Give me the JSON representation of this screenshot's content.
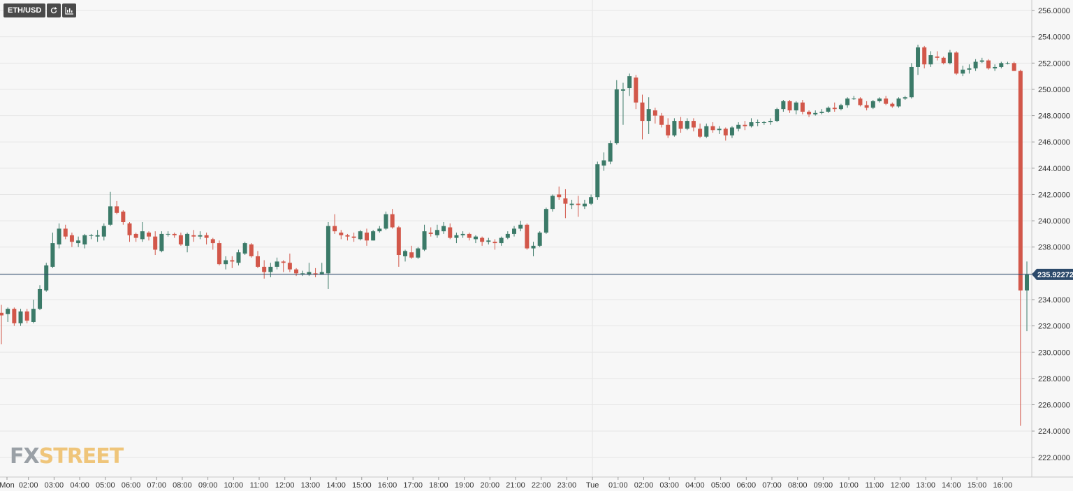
{
  "toolbar": {
    "symbol": "ETH/USD",
    "refresh_icon": "refresh-icon",
    "settings_icon": "chart-settings-icon"
  },
  "logo": {
    "fx": "FX",
    "street": "STREET"
  },
  "colors": {
    "up": "#3b7a68",
    "down": "#d2574a",
    "grid": "#e6e6e6",
    "axis_text": "#333333",
    "price_line": "#2c4a6b",
    "price_label_bg": "#2c4a6b"
  },
  "chart_data": {
    "type": "candlestick",
    "symbol": "ETH/USD",
    "interval": "15m",
    "current_price": "235.92272",
    "ylim": [
      220.5,
      256.8
    ],
    "y_ticks": [
      "256.0000",
      "254.0000",
      "252.0000",
      "250.0000",
      "248.0000",
      "246.0000",
      "244.0000",
      "242.0000",
      "240.0000",
      "238.0000",
      "236.0000",
      "234.0000",
      "232.0000",
      "230.0000",
      "228.0000",
      "226.0000",
      "224.0000",
      "222.0000"
    ],
    "x_ticks": [
      {
        "label": "Mon",
        "hour": 1
      },
      {
        "label": "02:00",
        "hour": 2
      },
      {
        "label": "03:00",
        "hour": 3
      },
      {
        "label": "04:00",
        "hour": 4
      },
      {
        "label": "05:00",
        "hour": 5
      },
      {
        "label": "06:00",
        "hour": 6
      },
      {
        "label": "07:00",
        "hour": 7
      },
      {
        "label": "08:00",
        "hour": 8
      },
      {
        "label": "09:00",
        "hour": 9
      },
      {
        "label": "10:00",
        "hour": 10
      },
      {
        "label": "11:00",
        "hour": 11
      },
      {
        "label": "12:00",
        "hour": 12
      },
      {
        "label": "13:00",
        "hour": 13
      },
      {
        "label": "14:00",
        "hour": 14
      },
      {
        "label": "15:00",
        "hour": 15
      },
      {
        "label": "16:00",
        "hour": 16
      },
      {
        "label": "17:00",
        "hour": 17
      },
      {
        "label": "18:00",
        "hour": 18
      },
      {
        "label": "19:00",
        "hour": 19
      },
      {
        "label": "20:00",
        "hour": 20
      },
      {
        "label": "21:00",
        "hour": 21
      },
      {
        "label": "22:00",
        "hour": 22
      },
      {
        "label": "23:00",
        "hour": 23
      },
      {
        "label": "Tue",
        "hour": 24
      },
      {
        "label": "01:00",
        "hour": 25
      },
      {
        "label": "02:00",
        "hour": 26
      },
      {
        "label": "03:00",
        "hour": 27
      },
      {
        "label": "04:00",
        "hour": 28
      },
      {
        "label": "05:00",
        "hour": 29
      },
      {
        "label": "06:00",
        "hour": 30
      },
      {
        "label": "07:00",
        "hour": 31
      },
      {
        "label": "08:00",
        "hour": 32
      },
      {
        "label": "09:00",
        "hour": 33
      },
      {
        "label": "10:00",
        "hour": 34
      },
      {
        "label": "11:00",
        "hour": 35
      },
      {
        "label": "12:00",
        "hour": 36
      },
      {
        "label": "13:00",
        "hour": 37
      },
      {
        "label": "14:00",
        "hour": 38
      },
      {
        "label": "15:00",
        "hour": 39
      },
      {
        "label": "16:00",
        "hour": 40
      }
    ],
    "candles": [
      [
        233.0,
        233.6,
        230.6,
        232.8
      ],
      [
        232.9,
        233.4,
        232.3,
        233.3
      ],
      [
        233.3,
        233.4,
        232.0,
        232.2
      ],
      [
        232.2,
        233.3,
        232.0,
        233.1
      ],
      [
        233.1,
        233.3,
        232.2,
        232.4
      ],
      [
        232.3,
        234.0,
        232.2,
        233.3
      ],
      [
        233.3,
        235.1,
        233.2,
        234.8
      ],
      [
        234.7,
        236.8,
        234.6,
        236.6
      ],
      [
        236.5,
        239.1,
        236.4,
        238.3
      ],
      [
        238.2,
        239.8,
        237.9,
        239.4
      ],
      [
        239.4,
        239.7,
        238.6,
        238.8
      ],
      [
        238.9,
        239.1,
        238.0,
        238.4
      ],
      [
        238.3,
        238.8,
        238.0,
        238.5
      ],
      [
        238.2,
        239.0,
        237.9,
        238.9
      ],
      [
        238.9,
        239.0,
        238.6,
        238.9
      ],
      [
        238.8,
        239.3,
        238.4,
        238.9
      ],
      [
        238.8,
        239.8,
        238.5,
        239.6
      ],
      [
        239.7,
        242.2,
        239.6,
        241.1
      ],
      [
        241.1,
        241.5,
        240.5,
        240.6
      ],
      [
        240.7,
        240.8,
        239.7,
        239.9
      ],
      [
        239.8,
        239.9,
        238.4,
        238.9
      ],
      [
        239.0,
        239.1,
        238.4,
        238.7
      ],
      [
        238.6,
        239.9,
        238.4,
        239.2
      ],
      [
        239.1,
        239.2,
        238.5,
        238.8
      ],
      [
        238.8,
        239.2,
        237.4,
        237.8
      ],
      [
        237.7,
        239.2,
        237.6,
        239.0
      ],
      [
        239.0,
        239.2,
        238.8,
        239.0
      ],
      [
        239.0,
        239.1,
        238.7,
        238.9
      ],
      [
        238.9,
        239.1,
        238.1,
        238.2
      ],
      [
        238.1,
        239.1,
        237.6,
        239.0
      ],
      [
        238.9,
        239.3,
        238.4,
        238.8
      ],
      [
        238.8,
        239.2,
        238.6,
        238.9
      ],
      [
        238.9,
        239.1,
        238.2,
        238.7
      ],
      [
        238.6,
        238.7,
        237.8,
        238.3
      ],
      [
        238.3,
        238.5,
        236.6,
        236.7
      ],
      [
        236.7,
        237.3,
        236.3,
        237.0
      ],
      [
        237.0,
        237.3,
        236.4,
        236.9
      ],
      [
        236.8,
        237.8,
        236.6,
        237.6
      ],
      [
        237.5,
        238.4,
        237.4,
        238.3
      ],
      [
        238.2,
        238.3,
        237.2,
        237.3
      ],
      [
        237.3,
        237.7,
        236.4,
        236.5
      ],
      [
        236.5,
        237.0,
        235.6,
        236.1
      ],
      [
        236.1,
        236.8,
        235.7,
        236.5
      ],
      [
        236.5,
        237.2,
        236.3,
        236.9
      ],
      [
        236.9,
        237.0,
        236.1,
        236.8
      ],
      [
        236.8,
        237.5,
        236.1,
        236.3
      ],
      [
        236.3,
        236.4,
        235.8,
        236.0
      ],
      [
        236.0,
        236.2,
        235.8,
        236.0
      ],
      [
        235.9,
        236.8,
        235.8,
        236.1
      ],
      [
        236.0,
        236.4,
        235.7,
        235.9
      ],
      [
        235.9,
        236.8,
        235.9,
        236.1
      ],
      [
        236.0,
        239.9,
        234.8,
        239.6
      ],
      [
        239.6,
        240.5,
        239.0,
        239.2
      ],
      [
        239.1,
        239.3,
        238.6,
        238.9
      ],
      [
        238.9,
        239.0,
        238.5,
        238.8
      ],
      [
        238.8,
        239.1,
        238.4,
        238.7
      ],
      [
        238.6,
        239.3,
        238.5,
        239.2
      ],
      [
        239.1,
        239.4,
        238.1,
        238.5
      ],
      [
        238.5,
        239.3,
        238.5,
        239.2
      ],
      [
        239.2,
        239.6,
        239.1,
        239.4
      ],
      [
        239.4,
        240.7,
        239.3,
        240.5
      ],
      [
        240.5,
        240.9,
        239.4,
        239.5
      ],
      [
        239.5,
        239.6,
        236.5,
        237.4
      ],
      [
        237.3,
        237.8,
        236.9,
        237.7
      ],
      [
        237.6,
        238.1,
        237.1,
        237.2
      ],
      [
        237.2,
        238.0,
        237.1,
        237.9
      ],
      [
        237.8,
        239.7,
        237.7,
        239.2
      ],
      [
        239.1,
        239.5,
        238.8,
        239.0
      ],
      [
        238.9,
        239.7,
        238.7,
        239.3
      ],
      [
        239.2,
        239.9,
        239.0,
        239.6
      ],
      [
        239.5,
        239.8,
        238.6,
        238.7
      ],
      [
        238.7,
        239.1,
        238.3,
        238.9
      ],
      [
        238.9,
        239.2,
        238.7,
        239.0
      ],
      [
        239.0,
        239.1,
        238.5,
        238.7
      ],
      [
        238.6,
        238.9,
        238.3,
        238.8
      ],
      [
        238.7,
        238.8,
        238.1,
        238.4
      ],
      [
        238.4,
        238.7,
        238.2,
        238.5
      ],
      [
        238.4,
        238.6,
        237.8,
        238.3
      ],
      [
        238.3,
        238.8,
        238.1,
        238.7
      ],
      [
        238.7,
        239.2,
        238.6,
        239.0
      ],
      [
        239.0,
        239.6,
        238.8,
        239.4
      ],
      [
        239.4,
        240.0,
        239.2,
        239.7
      ],
      [
        239.7,
        239.8,
        237.8,
        237.9
      ],
      [
        237.9,
        238.4,
        237.3,
        238.1
      ],
      [
        238.1,
        239.2,
        238.0,
        239.1
      ],
      [
        239.1,
        241.0,
        239.0,
        240.9
      ],
      [
        240.9,
        242.0,
        240.7,
        241.9
      ],
      [
        242.0,
        242.6,
        241.6,
        241.8
      ],
      [
        241.7,
        242.4,
        240.2,
        241.3
      ],
      [
        241.2,
        241.6,
        240.9,
        241.3
      ],
      [
        241.3,
        241.9,
        240.3,
        241.2
      ],
      [
        241.1,
        241.6,
        240.9,
        241.3
      ],
      [
        241.3,
        242.0,
        241.2,
        241.8
      ],
      [
        241.8,
        244.5,
        241.6,
        244.3
      ],
      [
        244.2,
        245.2,
        243.8,
        244.6
      ],
      [
        244.5,
        246.1,
        244.3,
        245.9
      ],
      [
        245.9,
        250.7,
        245.8,
        250.0
      ],
      [
        249.9,
        250.5,
        247.3,
        250.0
      ],
      [
        250.1,
        251.2,
        249.5,
        251.0
      ],
      [
        250.9,
        251.1,
        248.5,
        249.0
      ],
      [
        249.0,
        249.6,
        246.2,
        247.6
      ],
      [
        247.6,
        249.4,
        246.6,
        248.5
      ],
      [
        248.4,
        248.6,
        247.4,
        248.0
      ],
      [
        248.0,
        248.2,
        247.1,
        247.3
      ],
      [
        247.3,
        247.8,
        246.3,
        246.5
      ],
      [
        246.5,
        247.8,
        246.4,
        247.6
      ],
      [
        247.6,
        247.9,
        246.7,
        247.0
      ],
      [
        247.0,
        247.8,
        246.9,
        247.6
      ],
      [
        247.6,
        247.8,
        246.8,
        247.1
      ],
      [
        247.0,
        247.4,
        246.3,
        246.4
      ],
      [
        246.4,
        247.4,
        246.3,
        247.2
      ],
      [
        247.2,
        247.5,
        246.7,
        246.9
      ],
      [
        246.9,
        247.2,
        246.6,
        247.0
      ],
      [
        247.0,
        247.1,
        246.1,
        246.5
      ],
      [
        246.5,
        247.2,
        246.3,
        247.1
      ],
      [
        247.0,
        247.5,
        246.8,
        247.3
      ],
      [
        247.3,
        247.6,
        246.9,
        247.2
      ],
      [
        247.2,
        247.8,
        247.1,
        247.5
      ],
      [
        247.5,
        247.7,
        247.2,
        247.5
      ],
      [
        247.5,
        247.6,
        247.3,
        247.5
      ],
      [
        247.5,
        247.8,
        247.3,
        247.6
      ],
      [
        247.6,
        248.6,
        247.5,
        248.5
      ],
      [
        248.5,
        249.2,
        248.3,
        249.1
      ],
      [
        249.1,
        249.2,
        248.2,
        248.4
      ],
      [
        248.4,
        249.1,
        248.1,
        249.0
      ],
      [
        249.0,
        249.2,
        248.1,
        248.3
      ],
      [
        248.3,
        248.4,
        247.9,
        248.1
      ],
      [
        248.1,
        248.4,
        248.0,
        248.2
      ],
      [
        248.2,
        248.5,
        248.1,
        248.3
      ],
      [
        248.3,
        248.7,
        248.2,
        248.6
      ],
      [
        248.6,
        249.0,
        248.3,
        248.5
      ],
      [
        248.5,
        248.9,
        248.4,
        248.8
      ],
      [
        248.8,
        249.4,
        248.6,
        249.3
      ],
      [
        249.3,
        249.5,
        249.2,
        249.3
      ],
      [
        249.3,
        249.4,
        248.7,
        248.8
      ],
      [
        248.8,
        249.1,
        248.4,
        248.6
      ],
      [
        248.6,
        249.2,
        248.5,
        249.1
      ],
      [
        249.1,
        249.4,
        249.0,
        249.3
      ],
      [
        249.3,
        249.5,
        248.8,
        248.9
      ],
      [
        248.9,
        249.0,
        248.6,
        248.7
      ],
      [
        248.7,
        249.4,
        248.6,
        249.3
      ],
      [
        249.3,
        249.5,
        249.2,
        249.4
      ],
      [
        249.4,
        252.0,
        249.3,
        251.7
      ],
      [
        251.7,
        253.4,
        251.1,
        253.2
      ],
      [
        253.2,
        253.3,
        251.6,
        251.9
      ],
      [
        251.9,
        252.9,
        251.7,
        252.6
      ],
      [
        252.5,
        252.9,
        252.2,
        252.4
      ],
      [
        252.4,
        252.5,
        251.9,
        252.0
      ],
      [
        252.0,
        253.0,
        251.9,
        252.8
      ],
      [
        252.8,
        252.9,
        251.1,
        251.2
      ],
      [
        251.2,
        251.8,
        251.0,
        251.5
      ],
      [
        251.5,
        251.9,
        251.2,
        251.6
      ],
      [
        251.6,
        252.3,
        251.4,
        252.1
      ],
      [
        252.1,
        252.4,
        252.0,
        252.2
      ],
      [
        252.2,
        252.3,
        251.5,
        251.6
      ],
      [
        251.6,
        251.9,
        251.4,
        251.7
      ],
      [
        251.7,
        252.1,
        251.6,
        252.0
      ],
      [
        252.0,
        252.1,
        251.9,
        252.0
      ],
      [
        252.0,
        252.1,
        251.4,
        251.4
      ],
      [
        251.4,
        251.5,
        224.4,
        234.7
      ],
      [
        234.7,
        236.9,
        231.6,
        235.92
      ]
    ]
  }
}
